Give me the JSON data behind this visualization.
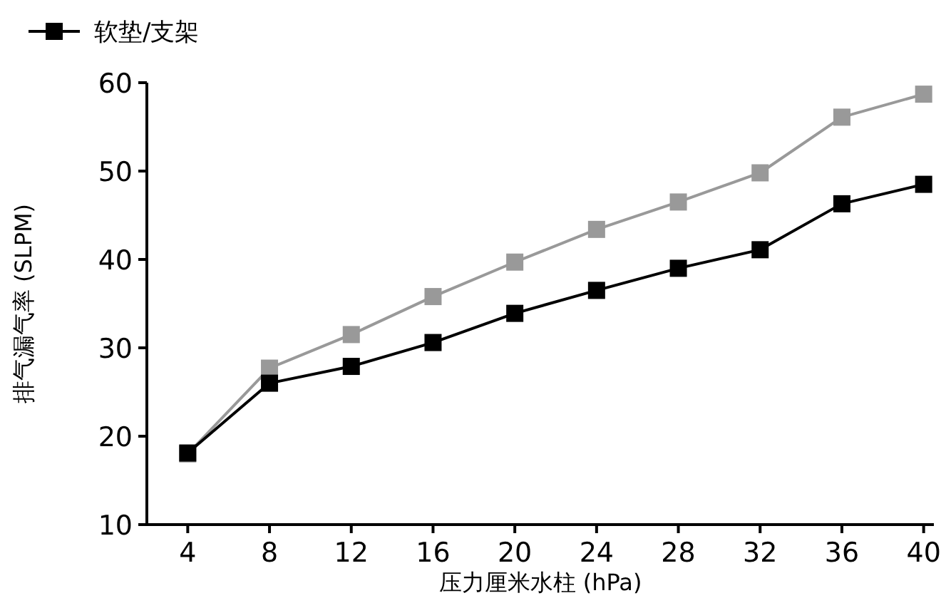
{
  "chart_data": {
    "type": "line",
    "xlabel": "压力厘米水柱 (hPa)",
    "ylabel": "排气漏气率 (SLPM)",
    "x": [
      4,
      8,
      12,
      16,
      20,
      24,
      28,
      32,
      36,
      40
    ],
    "series": [
      {
        "name": "软垫/支架",
        "color": "#000000",
        "values": [
          18.1,
          26,
          27.9,
          30.6,
          33.9,
          36.5,
          39,
          41.1,
          46.3,
          48.5
        ]
      },
      {
        "color": "#999999",
        "values": [
          18,
          27.7,
          31.5,
          35.8,
          39.7,
          43.4,
          46.5,
          49.8,
          56.1,
          58.7
        ]
      }
    ],
    "xlim": [
      2,
      40.5
    ],
    "ylim": [
      10,
      60
    ],
    "xticks": [
      4,
      8,
      12,
      16,
      20,
      24,
      28,
      32,
      36,
      40
    ],
    "yticks": [
      10,
      20,
      30,
      40,
      50,
      60
    ],
    "grid": false,
    "legend": "top",
    "marker": "square",
    "line_style": "solid"
  }
}
